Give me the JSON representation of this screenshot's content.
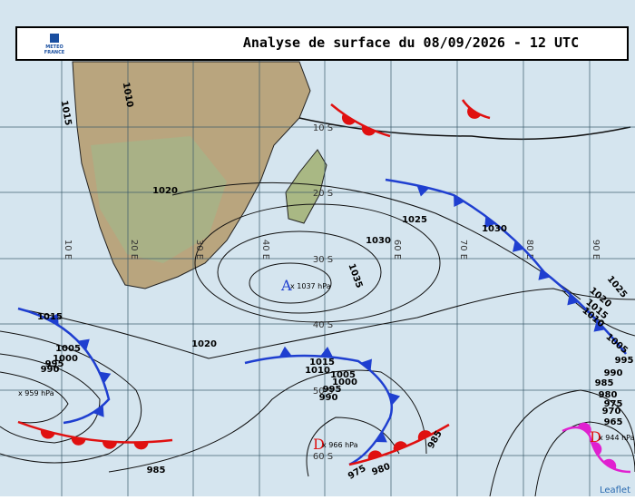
{
  "header": {
    "title": "Analyse de surface du 08/09/2026 - 12 UTC",
    "logo_lines": [
      "METEO",
      "FRANCE"
    ]
  },
  "grid": {
    "lat_labels": [
      "10 S",
      "20 S",
      "30 S",
      "40 S",
      "50 S",
      "60 S"
    ],
    "lon_labels": [
      "10 E",
      "20 E",
      "30 E",
      "40 E",
      "60 E",
      "70 E",
      "80 E",
      "90 E"
    ]
  },
  "isobar_labels": [
    "1015",
    "1010",
    "1020",
    "1025",
    "1030",
    "1035",
    "1030",
    "1020",
    "1015",
    "1005",
    "1000",
    "995",
    "990",
    "1015",
    "1010",
    "1005",
    "1000",
    "995",
    "990",
    "985",
    "975",
    "980",
    "985",
    "1025",
    "1020",
    "1015",
    "1010",
    "1005",
    "995",
    "990",
    "985",
    "980",
    "975",
    "970",
    "965"
  ],
  "centers": [
    {
      "letter": "A",
      "label": "x 1037 hPa"
    },
    {
      "letter": "D",
      "label": "x 966 hPa"
    },
    {
      "label": "x 959 hPa"
    },
    {
      "letter": "D",
      "label": "x 944 hPa"
    }
  ],
  "attribution": "Leaflet"
}
